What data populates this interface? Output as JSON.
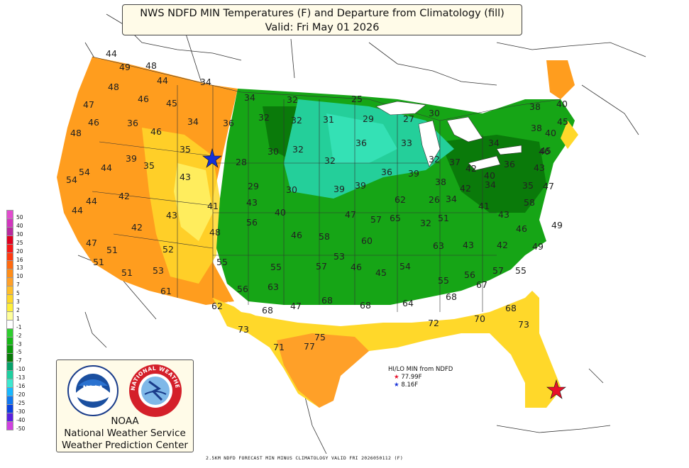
{
  "title": {
    "line1": "NWS NDFD MIN Temperatures (F) and Departure from Climatology (fill)",
    "line2": "Valid: Fri May 01 2026"
  },
  "legend": {
    "items": [
      {
        "label": "50",
        "color": "#e24ccf"
      },
      {
        "label": "40",
        "color": "#d235be"
      },
      {
        "label": "30",
        "color": "#b82a9e"
      },
      {
        "label": "25",
        "color": "#e00020"
      },
      {
        "label": "20",
        "color": "#f81818"
      },
      {
        "label": "16",
        "color": "#ff3a10"
      },
      {
        "label": "13",
        "color": "#ff6a10"
      },
      {
        "label": "10",
        "color": "#ff8d18"
      },
      {
        "label": "7",
        "color": "#ffa028"
      },
      {
        "label": "5",
        "color": "#ffbe2a"
      },
      {
        "label": "3",
        "color": "#ffd82a"
      },
      {
        "label": "2",
        "color": "#fff03a"
      },
      {
        "label": "1",
        "color": "#ffff9a"
      },
      {
        "label": "-1",
        "color": "#ffffff"
      },
      {
        "label": "-2",
        "color": "#2ecf2e"
      },
      {
        "label": "-3",
        "color": "#16b816"
      },
      {
        "label": "-5",
        "color": "#0a9a0a"
      },
      {
        "label": "-7",
        "color": "#087a08"
      },
      {
        "label": "-10",
        "color": "#06a26a"
      },
      {
        "label": "-13",
        "color": "#1ed0a0"
      },
      {
        "label": "-16",
        "color": "#3ce8d0"
      },
      {
        "label": "-20",
        "color": "#18b8ff"
      },
      {
        "label": "-25",
        "color": "#1078f0"
      },
      {
        "label": "-30",
        "color": "#0a40e0"
      },
      {
        "label": "-40",
        "color": "#5a20e0"
      },
      {
        "label": "-50",
        "color": "#d040e0"
      }
    ]
  },
  "hilo": {
    "title": "HI/LO MIN from NDFD",
    "hi": "77.99F",
    "lo": "8.16F"
  },
  "logo": {
    "line1": "NOAA",
    "line2": "National Weather Service",
    "line3": "Weather Prediction Center",
    "noaa_badge": "NOAA",
    "nws_ring": "NATIONAL WEATHER SERVICE"
  },
  "footer": "2.5KM NDFD FORECAST MIN MINUS CLIMATOLOGY VALID FRI 2026050112 (F)",
  "colors": {
    "warm_orange": "#ff9d1e",
    "warm_yellow": "#ffd82a",
    "cool_green": "#16a516",
    "cool_dark": "#0a7a0a",
    "cool_teal": "#24cf9a",
    "neutral": "#ffffff"
  },
  "temperatures": [
    "44",
    "49",
    "48",
    "44",
    "48",
    "47",
    "46",
    "45",
    "34",
    "34",
    "32",
    "25",
    "46",
    "36",
    "46",
    "34",
    "36",
    "32",
    "31",
    "29",
    "27",
    "30",
    "48",
    "35",
    "32",
    "30",
    "32",
    "33",
    "36",
    "34",
    "38",
    "38",
    "40",
    "40",
    "45",
    "54",
    "44",
    "39",
    "35",
    "28",
    "32",
    "36",
    "39",
    "37",
    "42",
    "36",
    "45",
    "43",
    "54",
    "43",
    "29",
    "30",
    "39",
    "39",
    "32",
    "38",
    "42",
    "40",
    "41",
    "58",
    "35",
    "44",
    "44",
    "42",
    "41",
    "43",
    "47",
    "62",
    "26",
    "34",
    "34",
    "43",
    "47",
    "46",
    "42",
    "43",
    "48",
    "40",
    "46",
    "58",
    "57",
    "65",
    "32",
    "51",
    "46",
    "49",
    "47",
    "51",
    "52",
    "56",
    "60",
    "63",
    "43",
    "42",
    "49",
    "51",
    "51",
    "53",
    "55",
    "55",
    "57",
    "53",
    "46",
    "45",
    "54",
    "56",
    "57",
    "55",
    "55",
    "56",
    "63",
    "61",
    "62",
    "68",
    "47",
    "68",
    "68",
    "64",
    "68",
    "67",
    "68",
    "72",
    "70",
    "73",
    "73",
    "71",
    "77",
    "75"
  ]
}
